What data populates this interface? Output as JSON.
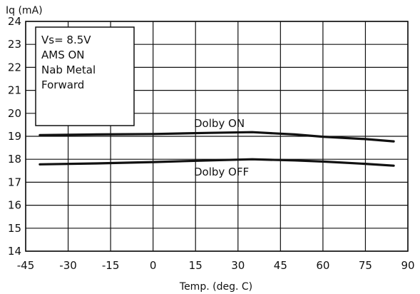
{
  "chart_data": {
    "type": "line",
    "ylabel": "Iq (mA)",
    "xlabel": "Temp. (deg. C)",
    "xlim": [
      -45,
      90
    ],
    "ylim": [
      14,
      24
    ],
    "xticks": [
      "-45",
      "-30",
      "-15",
      "0",
      "15",
      "30",
      "45",
      "60",
      "75",
      "90"
    ],
    "yticks": [
      "14",
      "15",
      "16",
      "17",
      "18",
      "19",
      "20",
      "21",
      "22",
      "23",
      "24"
    ],
    "grid": true,
    "annotation_lines": [
      "Vs= 8.5V",
      "AMS ON",
      "Nab Metal",
      "Forward"
    ],
    "series": [
      {
        "name": "Dolby ON",
        "x": [
          -40,
          -20,
          0,
          20,
          35,
          50,
          60,
          75,
          85
        ],
        "y": [
          19.05,
          19.08,
          19.1,
          19.15,
          19.18,
          19.08,
          18.98,
          18.88,
          18.78
        ]
      },
      {
        "name": "Dolby OFF",
        "x": [
          -40,
          -20,
          0,
          20,
          35,
          50,
          60,
          75,
          85
        ],
        "y": [
          17.78,
          17.82,
          17.88,
          17.95,
          18.0,
          17.95,
          17.9,
          17.8,
          17.72
        ]
      }
    ]
  }
}
